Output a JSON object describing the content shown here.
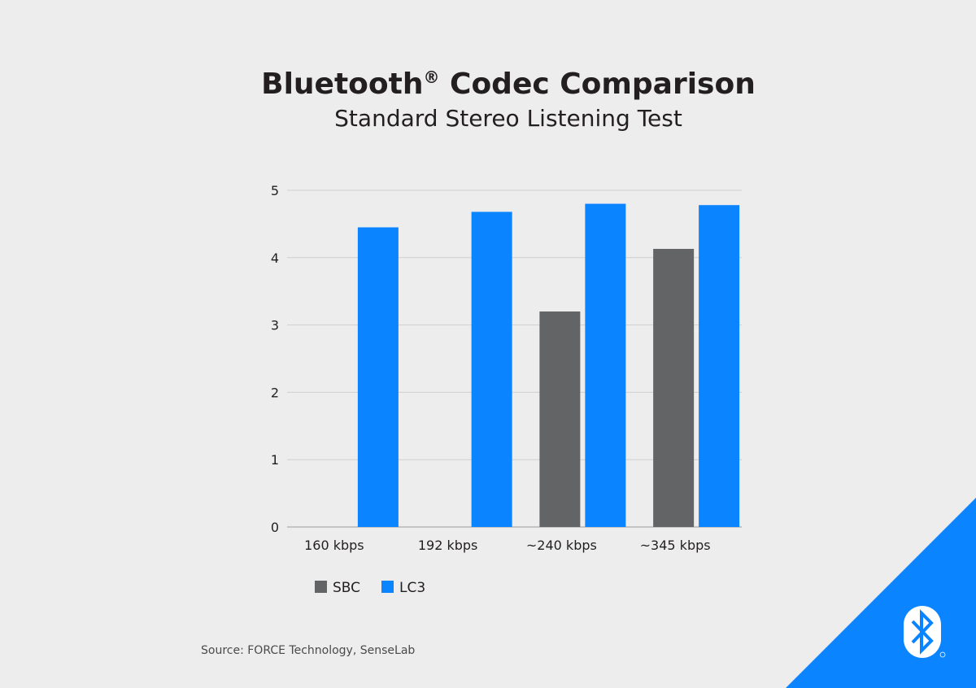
{
  "header": {
    "title": "Bluetooth",
    "title_mark": "®",
    "title_rest": " Codec Comparison",
    "subtitle": "Standard Stereo Listening Test"
  },
  "chart_data": {
    "type": "bar",
    "categories": [
      "160 kbps",
      "192 kbps",
      "~240 kbps",
      "~345 kbps"
    ],
    "series": [
      {
        "name": "SBC",
        "values": [
          null,
          null,
          3.2,
          4.13
        ],
        "color": "#636466"
      },
      {
        "name": "LC3",
        "values": [
          4.45,
          4.68,
          4.8,
          4.78
        ],
        "color": "#0a84ff"
      }
    ],
    "yticks": [
      0,
      1,
      2,
      3,
      4,
      5
    ],
    "ylim": [
      0,
      5
    ],
    "grid": true,
    "legend": "bottom-left"
  },
  "footer": {
    "source": "Source: FORCE Technology, SenseLab"
  },
  "brand": {
    "accent": "#0a84ff",
    "logo_icon": "bluetooth-icon"
  }
}
